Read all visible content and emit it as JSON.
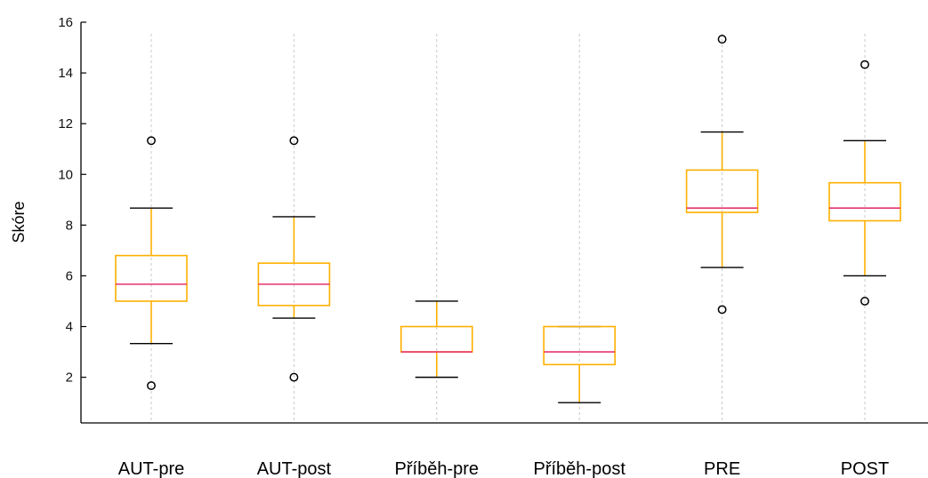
{
  "chart_data": {
    "type": "boxplot",
    "title": "",
    "xlabel": "",
    "ylabel": "Skóre",
    "ylim": [
      0.2,
      16
    ],
    "yticks": [
      2,
      4,
      6,
      8,
      10,
      12,
      14,
      16
    ],
    "grid": "vertical dotted lines at categories",
    "categories": [
      "AUT-pre",
      "AUT-post",
      "Příběh-pre",
      "Příběh-post",
      "PRE",
      "POST"
    ],
    "boxes": [
      {
        "whisker_low": 3.33,
        "q1": 5.0,
        "median": 5.67,
        "q3": 6.8,
        "whisker_high": 8.67,
        "outliers": [
          1.67,
          11.33
        ]
      },
      {
        "whisker_low": 4.33,
        "q1": 4.83,
        "median": 5.67,
        "q3": 6.5,
        "whisker_high": 8.33,
        "outliers": [
          2.0,
          11.33
        ]
      },
      {
        "whisker_low": 2.0,
        "q1": 3.0,
        "median": 3.0,
        "q3": 4.0,
        "whisker_high": 5.0,
        "outliers": []
      },
      {
        "whisker_low": 1.0,
        "q1": 2.5,
        "median": 3.0,
        "q3": 4.0,
        "whisker_high": 4.0,
        "outliers": []
      },
      {
        "whisker_low": 6.33,
        "q1": 8.5,
        "median": 8.67,
        "q3": 10.17,
        "whisker_high": 11.67,
        "outliers": [
          4.67,
          15.33
        ]
      },
      {
        "whisker_low": 6.0,
        "q1": 8.17,
        "median": 8.67,
        "q3": 9.67,
        "whisker_high": 11.33,
        "outliers": [
          5.0,
          14.33
        ]
      }
    ],
    "colors": {
      "box": "#ffb000",
      "median": "#e8336b",
      "whisker_cap": "#000000",
      "outlier": "#000000",
      "grid": "#c8c8c8",
      "axis": "#000000"
    }
  }
}
